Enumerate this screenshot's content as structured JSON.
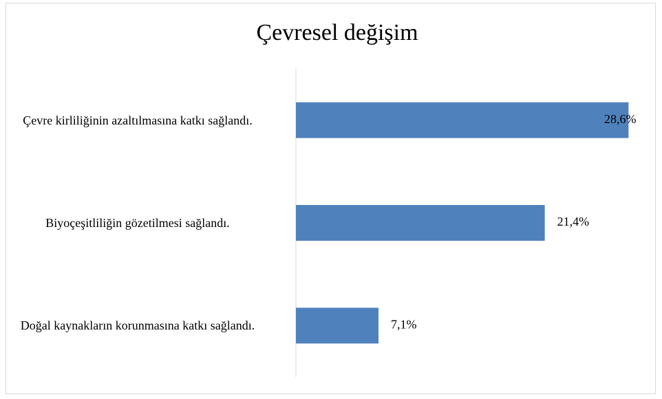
{
  "chart_data": {
    "type": "bar",
    "orientation": "horizontal",
    "title": "Çevresel değişim",
    "categories": [
      "Çevre kirliliğinin azaltılmasına katkı sağlandı.",
      "Biyoçeşitliliğin gözetilmesi sağlandı.",
      "Doğal kaynakların korunmasına katkı sağlandı."
    ],
    "values": [
      28.6,
      21.4,
      7.1
    ],
    "value_labels": [
      "28,6%",
      "21,4%",
      "7,1%"
    ],
    "color": "#4f81bd",
    "xlim": [
      0,
      30
    ]
  }
}
